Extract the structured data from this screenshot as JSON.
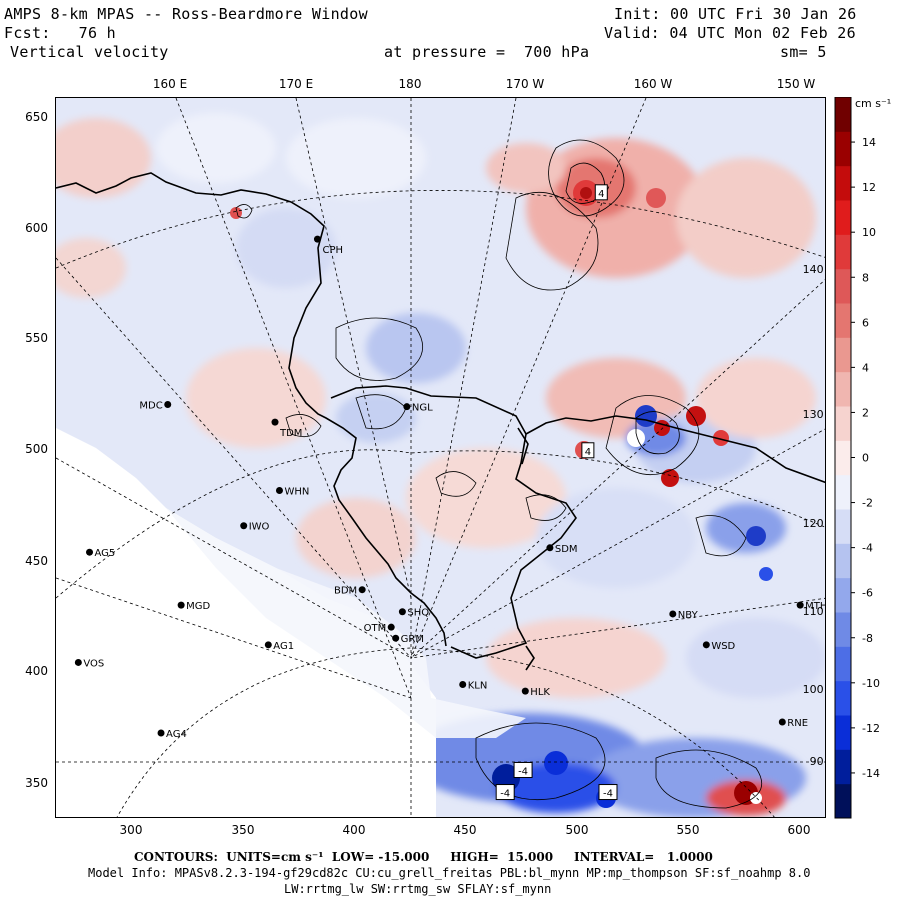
{
  "header": {
    "title": "AMPS 8-km MPAS -- Ross-Beardmore Window",
    "forecast": "Fcst:   76 h",
    "variable": "Vertical velocity",
    "init": "Init: 00 UTC Fri 30 Jan 26",
    "valid": "Valid: 04 UTC Mon 02 Feb 26",
    "pressure": "at pressure =  700 hPa",
    "smoothing": "sm= 5"
  },
  "top_axis_labels": [
    "160 E",
    "170 E",
    "180",
    "170 W",
    "160 W",
    "150 W"
  ],
  "x_axis": {
    "labels": [
      "300",
      "350",
      "400",
      "450",
      "500",
      "550",
      "600"
    ],
    "range": [
      265,
      610
    ]
  },
  "y_axis": {
    "labels": [
      "650",
      "600",
      "550",
      "500",
      "450",
      "400",
      "350"
    ],
    "range": [
      333,
      660
    ]
  },
  "inner_meridian_labels": [
    "140 W",
    "130 W",
    "120 W",
    "110 W",
    "100 W",
    "90 W"
  ],
  "stations": [
    {
      "name": "CPH",
      "x": 382,
      "y": 596
    },
    {
      "name": "MDC",
      "x": 315,
      "y": 521
    },
    {
      "name": "TDM",
      "x": 363,
      "y": 513
    },
    {
      "name": "NGL",
      "x": 422,
      "y": 520
    },
    {
      "name": "WHN",
      "x": 365,
      "y": 482
    },
    {
      "name": "IWO",
      "x": 349,
      "y": 466
    },
    {
      "name": "AG5",
      "x": 280,
      "y": 454
    },
    {
      "name": "SDM",
      "x": 486,
      "y": 456
    },
    {
      "name": "BDM",
      "x": 402,
      "y": 437
    },
    {
      "name": "MGD",
      "x": 321,
      "y": 430
    },
    {
      "name": "SHQ",
      "x": 420,
      "y": 427
    },
    {
      "name": "NBY",
      "x": 541,
      "y": 426
    },
    {
      "name": "OTM",
      "x": 415,
      "y": 420
    },
    {
      "name": "GRM",
      "x": 417,
      "y": 415
    },
    {
      "name": "MTH",
      "x": 598,
      "y": 430
    },
    {
      "name": "AG1",
      "x": 360,
      "y": 412
    },
    {
      "name": "WSD",
      "x": 556,
      "y": 412
    },
    {
      "name": "VOS",
      "x": 275,
      "y": 404
    },
    {
      "name": "KLN",
      "x": 447,
      "y": 394
    },
    {
      "name": "HLK",
      "x": 475,
      "y": 391
    },
    {
      "name": "RNE",
      "x": 590,
      "y": 377
    },
    {
      "name": "AG4",
      "x": 312,
      "y": 372
    }
  ],
  "extrema_boxes": [
    {
      "label": "4",
      "x": 509,
      "y": 617
    },
    {
      "label": "4",
      "x": 503,
      "y": 500
    },
    {
      "label": "-4",
      "x": 466,
      "y": 345
    },
    {
      "label": "-4",
      "x": 474,
      "y": 355
    },
    {
      "label": "-4",
      "x": 512,
      "y": 345
    }
  ],
  "colorbar": {
    "unit_label": "cm s⁻¹",
    "levels": [
      14,
      12,
      10,
      8,
      6,
      4,
      2,
      0,
      -2,
      -4,
      -6,
      -8,
      -10,
      -12,
      -14
    ],
    "min": -16,
    "max": 16,
    "colors": [
      "#00105a",
      "#001e9c",
      "#0a2ed8",
      "#2a50e8",
      "#4d6ee6",
      "#6f8ae6",
      "#93a8ec",
      "#b5c3f0",
      "#d6ddf6",
      "#eef1fb",
      "#fbeceb",
      "#f6d3cf",
      "#f0b6b0",
      "#ea9890",
      "#e47670",
      "#de5858",
      "#e03a3a",
      "#e01c1c",
      "#c40c0c",
      "#9a0000",
      "#700000"
    ]
  },
  "footer": {
    "contours_label": "CONTOURS:  UNITS=cm s⁻¹  LOW= -15.000     HIGH=  15.000     INTERVAL=   1.0000",
    "model_info": "Model Info: MPASv8.2.3-194-gf29cd82c CU:cu_grell_freitas PBL:bl_mynn MP:mp_thompson SF:sf_noahmp 8.0",
    "model_info2": "LW:rrtmg_lw SW:rrtmg_sw SFLAY:sf_mynn"
  },
  "colors": {
    "background": "#ffffff",
    "coast": "#000000",
    "land_ice": "#ffffff"
  }
}
